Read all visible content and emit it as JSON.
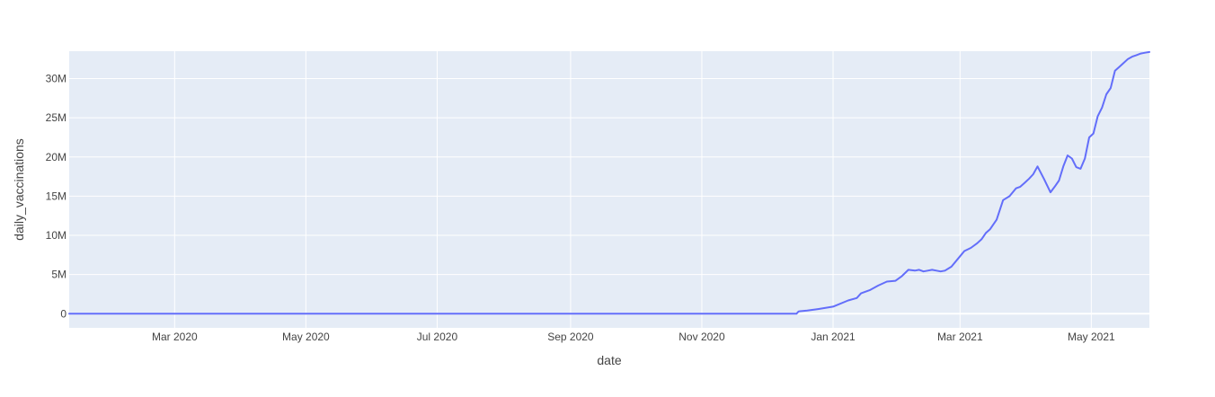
{
  "chart_data": {
    "type": "line",
    "xlabel": "date",
    "ylabel": "daily_vaccinations",
    "xlim": [
      "2020-01-12",
      "2021-05-28"
    ],
    "ylim": [
      -1800000,
      33500000
    ],
    "grid": true,
    "x_ticks": [
      {
        "value": "2020-03-01",
        "label": "Mar 2020"
      },
      {
        "value": "2020-05-01",
        "label": "May 2020"
      },
      {
        "value": "2020-07-01",
        "label": "Jul 2020"
      },
      {
        "value": "2020-09-01",
        "label": "Sep 2020"
      },
      {
        "value": "2020-11-01",
        "label": "Nov 2020"
      },
      {
        "value": "2021-01-01",
        "label": "Jan 2021"
      },
      {
        "value": "2021-03-01",
        "label": "Mar 2021"
      },
      {
        "value": "2021-05-01",
        "label": "May 2021"
      }
    ],
    "y_ticks": [
      {
        "value": 0,
        "label": "0"
      },
      {
        "value": 5000000,
        "label": "5M"
      },
      {
        "value": 10000000,
        "label": "10M"
      },
      {
        "value": 15000000,
        "label": "15M"
      },
      {
        "value": 20000000,
        "label": "20M"
      },
      {
        "value": 25000000,
        "label": "25M"
      },
      {
        "value": 30000000,
        "label": "30M"
      }
    ],
    "series": [
      {
        "color": "#636efa",
        "x": [
          "2020-01-12",
          "2020-03-01",
          "2020-05-01",
          "2020-07-01",
          "2020-09-01",
          "2020-11-01",
          "2020-12-15",
          "2020-12-16",
          "2020-12-20",
          "2020-12-25",
          "2021-01-01",
          "2021-01-08",
          "2021-01-12",
          "2021-01-14",
          "2021-01-18",
          "2021-01-22",
          "2021-01-26",
          "2021-01-30",
          "2021-02-02",
          "2021-02-05",
          "2021-02-08",
          "2021-02-10",
          "2021-02-12",
          "2021-02-14",
          "2021-02-16",
          "2021-02-18",
          "2021-02-20",
          "2021-02-22",
          "2021-02-25",
          "2021-02-28",
          "2021-03-03",
          "2021-03-06",
          "2021-03-09",
          "2021-03-11",
          "2021-03-13",
          "2021-03-15",
          "2021-03-18",
          "2021-03-21",
          "2021-03-24",
          "2021-03-27",
          "2021-03-29",
          "2021-03-31",
          "2021-04-02",
          "2021-04-04",
          "2021-04-06",
          "2021-04-09",
          "2021-04-12",
          "2021-04-14",
          "2021-04-16",
          "2021-04-18",
          "2021-04-20",
          "2021-04-22",
          "2021-04-24",
          "2021-04-26",
          "2021-04-28",
          "2021-04-30",
          "2021-05-02",
          "2021-05-04",
          "2021-05-06",
          "2021-05-08",
          "2021-05-10",
          "2021-05-12",
          "2021-05-14",
          "2021-05-16",
          "2021-05-18",
          "2021-05-20",
          "2021-05-22",
          "2021-05-24",
          "2021-05-26",
          "2021-05-28"
        ],
        "y": [
          0,
          0,
          0,
          0,
          0,
          0,
          0,
          300000,
          400000,
          600000,
          900000,
          1700000,
          2000000,
          2600000,
          3000000,
          3600000,
          4100000,
          4200000,
          4800000,
          5600000,
          5500000,
          5600000,
          5400000,
          5500000,
          5600000,
          5500000,
          5400000,
          5500000,
          6000000,
          7000000,
          8000000,
          8400000,
          9000000,
          9500000,
          10300000,
          10800000,
          12000000,
          14500000,
          15000000,
          16000000,
          16200000,
          16700000,
          17200000,
          17800000,
          18800000,
          17200000,
          15500000,
          16200000,
          17000000,
          18800000,
          20200000,
          19800000,
          18700000,
          18500000,
          19800000,
          22500000,
          23000000,
          25200000,
          26300000,
          28000000,
          28800000,
          31000000,
          31500000,
          32000000,
          32500000,
          32800000,
          33000000,
          33200000,
          33300000,
          33400000
        ]
      }
    ]
  }
}
